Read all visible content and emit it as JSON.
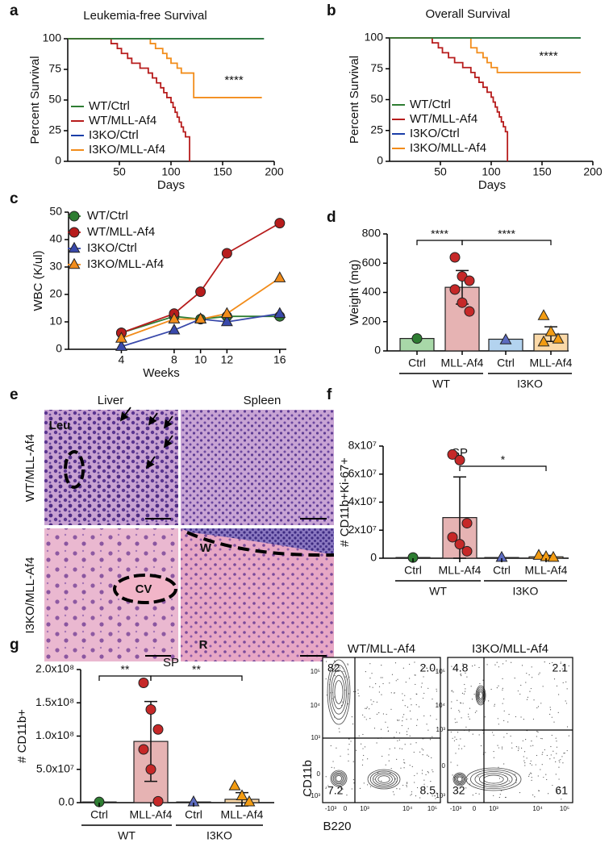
{
  "panels": [
    "a",
    "b",
    "c",
    "d",
    "e",
    "f",
    "g"
  ],
  "chart_data": [
    {
      "type": "step",
      "title": "Leukemia-free Survival",
      "xlabel": "Days",
      "ylabel": "Percent Survival",
      "annotation": "****",
      "xlim": [
        0,
        200
      ],
      "xticks": [
        50,
        100,
        150,
        200
      ],
      "ylim": [
        0,
        100
      ],
      "yticks": [
        0,
        25,
        50,
        75,
        100
      ],
      "series": [
        {
          "name": "WT/Ctrl",
          "color": "#2e7d32",
          "x": [
            0,
            190
          ],
          "values": [
            100,
            100
          ]
        },
        {
          "name": "WT/MLL-Af4",
          "color": "#b71c1c",
          "x": [
            0,
            42,
            48,
            52,
            58,
            62,
            70,
            78,
            82,
            86,
            90,
            93,
            96,
            100,
            102,
            104,
            106,
            108,
            110,
            112,
            114,
            118
          ],
          "values": [
            100,
            96,
            92,
            88,
            84,
            80,
            76,
            72,
            68,
            64,
            60,
            56,
            52,
            48,
            44,
            40,
            36,
            32,
            28,
            24,
            20,
            0
          ]
        },
        {
          "name": "I3KO/Ctrl",
          "color": "#1a3ea8",
          "x": [
            0,
            190
          ],
          "values": [
            100,
            100
          ]
        },
        {
          "name": "I3KO/MLL-Af4",
          "color": "#f28c1a",
          "x": [
            0,
            80,
            85,
            92,
            96,
            100,
            106,
            110,
            122,
            188
          ],
          "values": [
            100,
            96,
            92,
            88,
            84,
            80,
            76,
            72,
            52,
            52
          ]
        }
      ]
    },
    {
      "type": "step",
      "title": "Overall Survival",
      "xlabel": "Days",
      "ylabel": "Percent Survival",
      "annotation": "****",
      "xlim": [
        0,
        200
      ],
      "xticks": [
        50,
        100,
        150,
        200
      ],
      "ylim": [
        0,
        100
      ],
      "yticks": [
        0,
        25,
        50,
        75,
        100
      ],
      "series": [
        {
          "name": "WT/Ctrl",
          "color": "#2e7d32",
          "x": [
            0,
            188
          ],
          "values": [
            100,
            100
          ]
        },
        {
          "name": "WT/MLL-Af4",
          "color": "#b71c1c",
          "x": [
            0,
            42,
            48,
            52,
            58,
            64,
            72,
            80,
            84,
            88,
            92,
            96,
            100,
            102,
            104,
            106,
            108,
            110,
            112,
            114,
            116
          ],
          "values": [
            100,
            96,
            92,
            88,
            84,
            80,
            76,
            72,
            68,
            64,
            60,
            56,
            52,
            48,
            44,
            40,
            36,
            32,
            28,
            24,
            0
          ]
        },
        {
          "name": "I3KO/Ctrl",
          "color": "#1a3ea8",
          "x": [
            0,
            188
          ],
          "values": [
            100,
            100
          ]
        },
        {
          "name": "I3KO/MLL-Af4",
          "color": "#f28c1a",
          "x": [
            0,
            80,
            86,
            92,
            96,
            100,
            106,
            188
          ],
          "values": [
            100,
            92,
            88,
            84,
            80,
            76,
            72,
            72
          ]
        }
      ]
    },
    {
      "type": "line",
      "xlabel": "Weeks",
      "ylabel": "WBC (K/ul)",
      "x": [
        4,
        8,
        10,
        12,
        16
      ],
      "xlim": [
        0,
        16.5
      ],
      "xticks": [
        4,
        8,
        10,
        12,
        16
      ],
      "ylim": [
        0,
        50
      ],
      "yticks": [
        0,
        10,
        20,
        30,
        40,
        50
      ],
      "markers": [
        "circle",
        "circle",
        "triangle",
        "triangle"
      ],
      "series": [
        {
          "name": "WT/Ctrl",
          "color": "#2e7d32",
          "values": [
            6,
            12,
            11,
            12,
            12
          ]
        },
        {
          "name": "WT/MLL-Af4",
          "color": "#b71c1c",
          "values": [
            6,
            13,
            21,
            35,
            46
          ]
        },
        {
          "name": "I3KO/Ctrl",
          "color": "#3949ab",
          "values": [
            1,
            7,
            11,
            10,
            13
          ]
        },
        {
          "name": "I3KO/MLL-Af4",
          "color": "#f28c1a",
          "values": [
            4,
            11,
            11,
            13,
            26
          ]
        }
      ]
    },
    {
      "type": "bar",
      "ylabel": "Weight (mg)",
      "categories": [
        "Ctrl",
        "MLL-Af4",
        "Ctrl",
        "MLL-Af4"
      ],
      "groups": [
        "WT",
        "I3KO"
      ],
      "values": [
        85,
        435,
        80,
        115
      ],
      "errors": [
        null,
        115,
        null,
        50
      ],
      "points": [
        [
          85
        ],
        [
          640,
          510,
          480,
          420,
          330,
          270
        ],
        [
          75
        ],
        [
          240,
          130,
          80,
          60
        ]
      ],
      "colors": [
        "#a8d8a8",
        "#e6b3b3",
        "#b3d3ef",
        "#fbd9a8"
      ],
      "point_colors": [
        "#2e7d32",
        "#c62828",
        "#5c6bc0",
        "#f39c12"
      ],
      "markers": [
        "circle",
        "circle",
        "triangle",
        "triangle"
      ],
      "ylim": [
        0,
        800
      ],
      "yticks": [
        0,
        200,
        400,
        600,
        800
      ],
      "annotations": [
        "****",
        "****"
      ]
    },
    {
      "type": "bar",
      "title": "SP",
      "ylabel": "# CD11b+Ki-67+",
      "categories": [
        "Ctrl",
        "MLL-Af4",
        "Ctrl",
        "MLL-Af4"
      ],
      "groups": [
        "WT",
        "I3KO"
      ],
      "values": [
        500000,
        29000000,
        500000,
        1000000
      ],
      "errors": [
        null,
        29000000,
        null,
        1000000
      ],
      "points": [
        [
          500000
        ],
        [
          74000000,
          70000000,
          25000000,
          15000000,
          10000000,
          5000000
        ],
        [
          500000
        ],
        [
          2000000,
          1000000,
          500000
        ]
      ],
      "colors": [
        "#a8d8a8",
        "#e6b3b3",
        "#b3d3ef",
        "#fbd9a8"
      ],
      "point_colors": [
        "#2e7d32",
        "#c62828",
        "#5c6bc0",
        "#f39c12"
      ],
      "markers": [
        "circle",
        "circle",
        "triangle",
        "triangle"
      ],
      "ylim": [
        0,
        80000000
      ],
      "yticks": [
        0,
        {
          "value": 20000000,
          "label": "2x10⁷"
        },
        {
          "value": 40000000,
          "label": "4x10⁷"
        },
        {
          "value": 60000000,
          "label": "6x10⁷"
        },
        {
          "value": 80000000,
          "label": "8x10⁷"
        }
      ],
      "annotations": [
        "*"
      ]
    },
    {
      "type": "bar",
      "title": "SP",
      "ylabel": "# CD11b+",
      "categories": [
        "Ctrl",
        "MLL-Af4",
        "Ctrl",
        "MLL-Af4"
      ],
      "groups": [
        "WT",
        "I3KO"
      ],
      "values": [
        1000000,
        92000000,
        1000000,
        5000000
      ],
      "errors": [
        null,
        60000000,
        null,
        10000000
      ],
      "points": [
        [
          1000000
        ],
        [
          180000000,
          140000000,
          110000000,
          80000000,
          50000000,
          2000000
        ],
        [
          1000000
        ],
        [
          25000000,
          10000000,
          1000000
        ]
      ],
      "colors": [
        "#a8d8a8",
        "#e6b3b3",
        "#b3d3ef",
        "#fbd9a8"
      ],
      "point_colors": [
        "#2e7d32",
        "#c62828",
        "#5c6bc0",
        "#f39c12"
      ],
      "markers": [
        "circle",
        "circle",
        "triangle",
        "triangle"
      ],
      "ylim": [
        0,
        200000000
      ],
      "yticks": [
        {
          "value": 0,
          "label": "0.0"
        },
        {
          "value": 50000000,
          "label": "5.0x10⁷"
        },
        {
          "value": 100000000,
          "label": "1.0x10⁸"
        },
        {
          "value": 150000000,
          "label": "1.5x10⁸"
        },
        {
          "value": 200000000,
          "label": "2.0x10⁸"
        }
      ],
      "annotations": [
        "**",
        "**"
      ]
    }
  ],
  "histology": {
    "columns": [
      "Liver",
      "Spleen"
    ],
    "rows": [
      "WT/MLL-Af4",
      "I3KO/MLL-Af4"
    ],
    "labels": [
      "Leu",
      "CV",
      "W",
      "R"
    ]
  },
  "flow": {
    "xlabel": "B220",
    "ylabel": "CD11b",
    "yticks": [
      "10⁵",
      "10⁴",
      "10³",
      "0",
      "-10³"
    ],
    "xticks": [
      "-10³",
      "0",
      "10³",
      "10⁴",
      "10⁵"
    ],
    "plots": [
      {
        "title": "WT/MLL-Af4",
        "quadrants": [
          "82",
          "2.0",
          "7.2",
          "8.5"
        ]
      },
      {
        "title": "I3KO/MLL-Af4",
        "quadrants": [
          "4.8",
          "2.1",
          "32",
          "61"
        ]
      }
    ]
  }
}
